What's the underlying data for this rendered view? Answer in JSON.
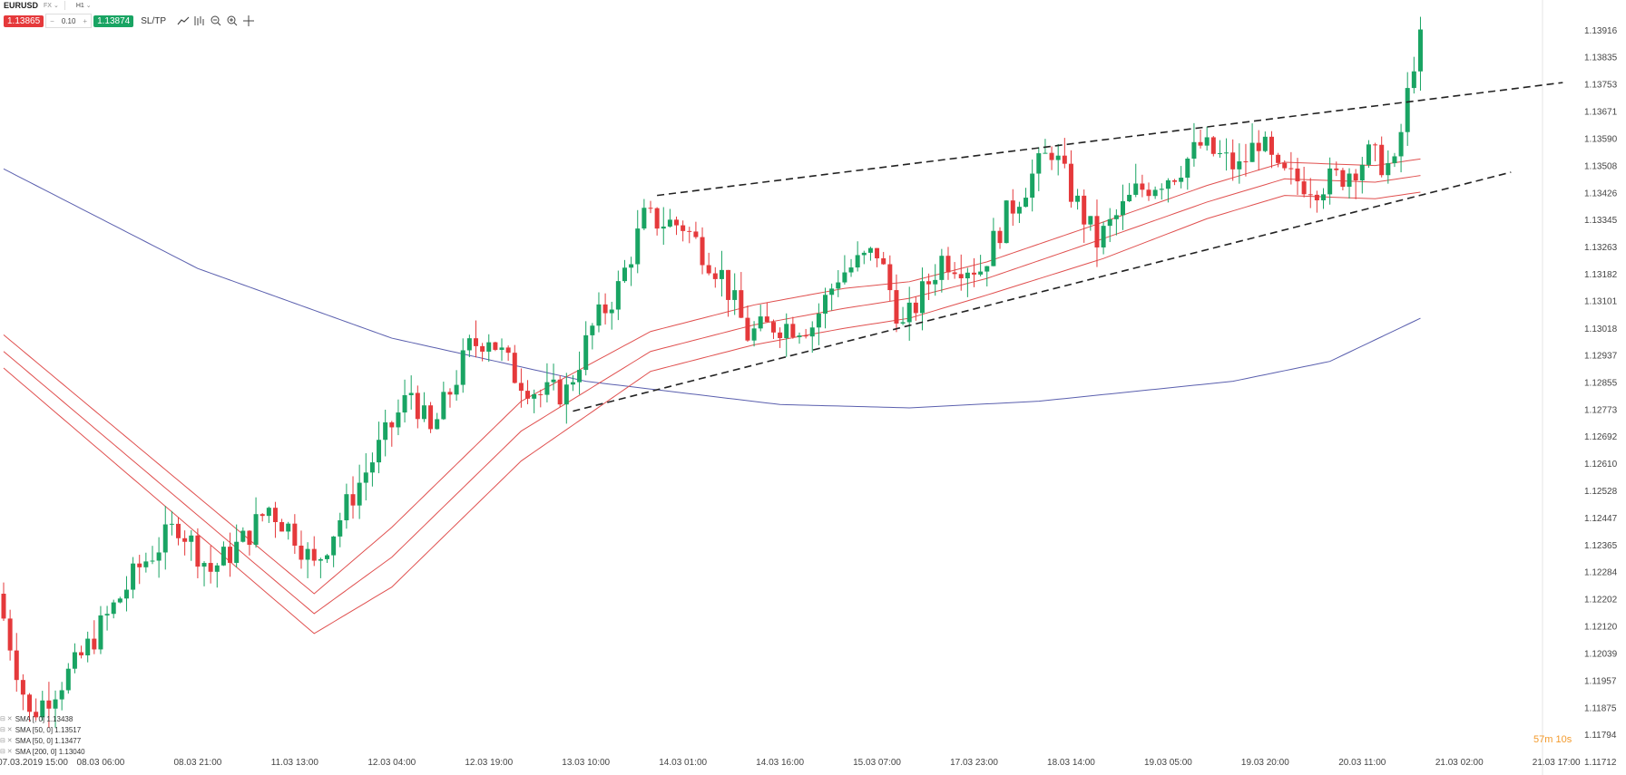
{
  "header": {
    "symbol": "EURUSD",
    "market": "FX",
    "timeframe": "H1",
    "sell_price": "1.13865",
    "lot_size": "0.10",
    "buy_price": "1.13874",
    "sltp_label": "SL/TP"
  },
  "icons": [
    "line-chart-icon",
    "indicators-icon",
    "zoom-out-icon",
    "zoom-in-icon",
    "crosshair-icon"
  ],
  "colors": {
    "bull": "#19a463",
    "bear": "#e5393b",
    "envelope": "#e0504f",
    "sma200": "#5a5fae",
    "trend": "#222222",
    "timer": "#f39a2c"
  },
  "indicators": [
    {
      "label": "SMA [",
      "period_hidden": "",
      "tail": ", 0] 1.13438"
    },
    {
      "label": "SMA [50, 0] 1.13517"
    },
    {
      "label": "SMA [50, 0] 1.13477"
    },
    {
      "label": "SMA [200, 0] 1.13040"
    }
  ],
  "timer": "57m 10s",
  "chart_data": {
    "type": "candlestick",
    "y_ticks": [
      "1.13916",
      "1.13835",
      "1.13753",
      "1.13671",
      "1.13590",
      "1.13508",
      "1.13426",
      "1.13345",
      "1.13263",
      "1.13182",
      "1.13101",
      "1.13018",
      "1.12937",
      "1.12855",
      "1.12773",
      "1.12692",
      "1.12610",
      "1.12528",
      "1.12447",
      "1.12365",
      "1.12284",
      "1.12202",
      "1.12120",
      "1.12039",
      "1.11957",
      "1.11875",
      "1.11794",
      "1.11712"
    ],
    "x_ticks": [
      "07.03.2019 15:00",
      "08.03 06:00",
      "08.03 21:00",
      "11.03 13:00",
      "12.03 04:00",
      "12.03 19:00",
      "13.03 10:00",
      "14.03 01:00",
      "14.03 16:00",
      "15.03 07:00",
      "17.03 23:00",
      "18.03 14:00",
      "19.03 05:00",
      "19.03 20:00",
      "20.03 11:00",
      "21.03 02:00",
      "21.03 17:00"
    ],
    "x_tick_index": [
      0,
      15,
      30,
      45,
      60,
      75,
      90,
      105,
      120,
      135,
      150,
      165,
      180,
      195,
      210,
      225,
      240
    ],
    "ylim": [
      1.1171,
      1.1396
    ],
    "anchors": [
      [
        0,
        1.1222
      ],
      [
        5,
        1.1185
      ],
      [
        12,
        1.12
      ],
      [
        22,
        1.123
      ],
      [
        28,
        1.1243
      ],
      [
        33,
        1.1229
      ],
      [
        38,
        1.1238
      ],
      [
        42,
        1.1248
      ],
      [
        46,
        1.124
      ],
      [
        49,
        1.123
      ],
      [
        55,
        1.1252
      ],
      [
        64,
        1.1283
      ],
      [
        67,
        1.127
      ],
      [
        73,
        1.1296
      ],
      [
        76,
        1.13
      ],
      [
        80,
        1.1288
      ],
      [
        84,
        1.1282
      ],
      [
        88,
        1.1283
      ],
      [
        92,
        1.1302
      ],
      [
        96,
        1.1314
      ],
      [
        100,
        1.1335
      ],
      [
        106,
        1.1333
      ],
      [
        112,
        1.1318
      ],
      [
        116,
        1.13
      ],
      [
        120,
        1.1303
      ],
      [
        126,
        1.1303
      ],
      [
        130,
        1.1318
      ],
      [
        136,
        1.1325
      ],
      [
        140,
        1.1302
      ],
      [
        146,
        1.1323
      ],
      [
        152,
        1.132
      ],
      [
        156,
        1.1336
      ],
      [
        160,
        1.1348
      ],
      [
        163,
        1.1356
      ],
      [
        166,
        1.1343
      ],
      [
        170,
        1.1328
      ],
      [
        176,
        1.1343
      ],
      [
        182,
        1.1349
      ],
      [
        186,
        1.1357
      ],
      [
        192,
        1.135
      ],
      [
        195,
        1.1359
      ],
      [
        198,
        1.1348
      ],
      [
        204,
        1.1345
      ],
      [
        208,
        1.1348
      ],
      [
        212,
        1.1354
      ],
      [
        216,
        1.135
      ],
      [
        219,
        1.1383
      ]
    ],
    "n_candles": 220,
    "envelopes": [
      [
        [
          0,
          1.13
        ],
        [
          48,
          1.1222
        ],
        [
          60,
          1.1242
        ],
        [
          80,
          1.128
        ],
        [
          100,
          1.1301
        ],
        [
          116,
          1.1309
        ],
        [
          130,
          1.1314
        ],
        [
          140,
          1.1316
        ],
        [
          152,
          1.1322
        ],
        [
          170,
          1.1334
        ],
        [
          186,
          1.1345
        ],
        [
          198,
          1.1352
        ],
        [
          212,
          1.1351
        ],
        [
          219,
          1.1353
        ]
      ],
      [
        [
          0,
          1.1295
        ],
        [
          48,
          1.1216
        ],
        [
          60,
          1.1233
        ],
        [
          80,
          1.1271
        ],
        [
          100,
          1.1295
        ],
        [
          116,
          1.1303
        ],
        [
          130,
          1.1308
        ],
        [
          140,
          1.1311
        ],
        [
          152,
          1.1317
        ],
        [
          170,
          1.1329
        ],
        [
          186,
          1.134
        ],
        [
          198,
          1.1347
        ],
        [
          212,
          1.1346
        ],
        [
          219,
          1.1348
        ]
      ],
      [
        [
          0,
          1.129
        ],
        [
          48,
          1.121
        ],
        [
          60,
          1.1224
        ],
        [
          80,
          1.1262
        ],
        [
          100,
          1.1289
        ],
        [
          116,
          1.1297
        ],
        [
          130,
          1.1302
        ],
        [
          140,
          1.1305
        ],
        [
          152,
          1.1312
        ],
        [
          170,
          1.1323
        ],
        [
          186,
          1.1335
        ],
        [
          198,
          1.1342
        ],
        [
          212,
          1.1341
        ],
        [
          219,
          1.1343
        ]
      ]
    ],
    "sma200": [
      [
        0,
        1.135
      ],
      [
        30,
        1.132
      ],
      [
        60,
        1.1299
      ],
      [
        90,
        1.1286
      ],
      [
        120,
        1.1279
      ],
      [
        140,
        1.1278
      ],
      [
        160,
        1.128
      ],
      [
        190,
        1.1286
      ],
      [
        205,
        1.1292
      ],
      [
        219,
        1.1305
      ]
    ],
    "trendlines": [
      {
        "from": [
          101,
          1.1342
        ],
        "to": [
          241,
          1.1376
        ]
      },
      {
        "from": [
          88,
          1.1277
        ],
        "to": [
          233,
          1.1349
        ]
      }
    ]
  }
}
